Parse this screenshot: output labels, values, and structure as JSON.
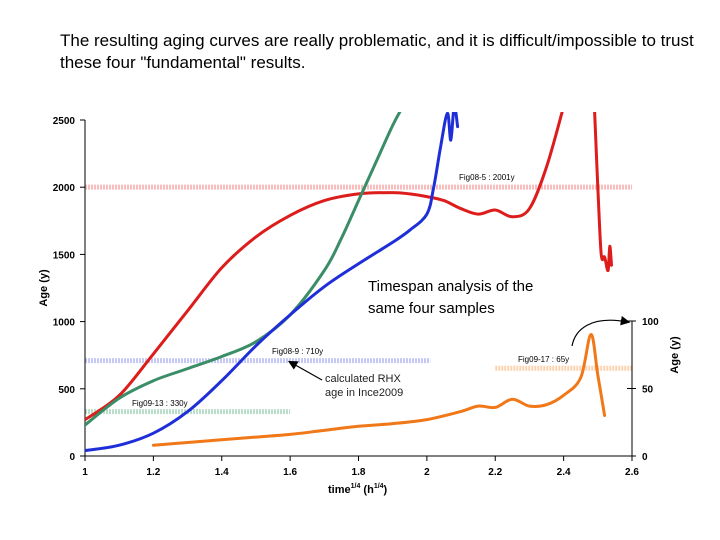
{
  "heading": "The resulting aging curves are really problematic, and it is difficult/impossible to trust  these four \"fundamental\" results.",
  "chart_data": {
    "type": "line",
    "xlabel": "time",
    "xlabel_exponent": "1/4",
    "xlabel_unit_open": " (h",
    "xlabel_unit_exponent": "1/4",
    "xlabel_unit_close": ")",
    "ylabel": "Age (y)",
    "y2label": "Age (y)",
    "xlim": [
      1,
      2.6
    ],
    "ylim": [
      0,
      2500
    ],
    "y2lim": [
      0,
      100
    ],
    "x_ticks": [
      "1",
      "1.2",
      "1.4",
      "1.6",
      "1.8",
      "2",
      "2.2",
      "2.4",
      "2.6"
    ],
    "y_ticks": [
      "0",
      "500",
      "1000",
      "1500",
      "2000",
      "2500"
    ],
    "y2_ticks": [
      "0",
      "50",
      "100"
    ],
    "reference_lines": [
      {
        "label": "Fig08-5 : 2001y",
        "value": 2001,
        "axis": "left",
        "x_range": [
          1,
          2.6
        ],
        "color": "#f06a6a"
      },
      {
        "label": "Fig08-9 : 710y",
        "value": 710,
        "axis": "left",
        "x_range": [
          1,
          2.01
        ],
        "color": "#7f86e8"
      },
      {
        "label": "Fig09-13 : 330y",
        "value": 330,
        "axis": "left",
        "x_range": [
          1,
          1.6
        ],
        "color": "#66b88a"
      },
      {
        "label": "Fig09-17 : 65y",
        "value": 65,
        "axis": "right",
        "x_range": [
          2.2,
          2.6
        ],
        "color": "#f5a050"
      }
    ],
    "series": [
      {
        "name": "red",
        "axis": "left",
        "color": "#dd1c1c",
        "x": [
          1.0,
          1.1,
          1.2,
          1.3,
          1.4,
          1.5,
          1.6,
          1.7,
          1.8,
          1.9,
          1.95,
          2.0,
          2.05,
          2.1,
          2.15,
          2.2,
          2.25,
          2.3,
          2.35,
          2.4
        ],
        "y": [
          270,
          450,
          760,
          1080,
          1400,
          1630,
          1790,
          1900,
          1950,
          1960,
          1950,
          1930,
          1900,
          1840,
          1800,
          1830,
          1780,
          1840,
          2150,
          2600
        ]
      },
      {
        "name": "red-tail",
        "axis": "left",
        "color": "#dd1c1c",
        "x": [
          2.49,
          2.5,
          2.51,
          2.52,
          2.53,
          2.535,
          2.54
        ],
        "y": [
          2600,
          2000,
          1500,
          1480,
          1380,
          1560,
          1420
        ]
      },
      {
        "name": "green",
        "axis": "left",
        "color": "#3a8e67",
        "x": [
          1.0,
          1.1,
          1.2,
          1.3,
          1.4,
          1.5,
          1.6,
          1.7,
          1.75,
          1.8,
          1.85,
          1.9,
          1.93
        ],
        "y": [
          230,
          430,
          560,
          650,
          740,
          850,
          1050,
          1380,
          1620,
          1900,
          2180,
          2460,
          2600
        ]
      },
      {
        "name": "blue",
        "axis": "left",
        "color": "#1f2fd8",
        "x": [
          1.0,
          1.1,
          1.2,
          1.3,
          1.4,
          1.5,
          1.6,
          1.7,
          1.8,
          1.9,
          1.95,
          2.0,
          2.02,
          2.04,
          2.06,
          2.07,
          2.08,
          2.09
        ],
        "y": [
          40,
          80,
          170,
          330,
          560,
          820,
          1050,
          1260,
          1430,
          1590,
          1680,
          1800,
          2000,
          2300,
          2550,
          2350,
          2600,
          2450
        ]
      },
      {
        "name": "orange",
        "axis": "right",
        "color": "#f07818",
        "x": [
          1.2,
          1.3,
          1.4,
          1.5,
          1.6,
          1.7,
          1.8,
          1.9,
          2.0,
          2.1,
          2.15,
          2.2,
          2.25,
          2.3,
          2.35,
          2.4,
          2.45,
          2.48,
          2.5,
          2.52
        ],
        "y": [
          8,
          10,
          12,
          14,
          16,
          19,
          22,
          24,
          27,
          33,
          37,
          36,
          42,
          37,
          38,
          45,
          58,
          90,
          60,
          30
        ]
      }
    ],
    "overlay_text": [
      "Timespan analysis of the",
      "same four samples"
    ],
    "annotation_text": [
      "calculated RHX",
      "age in Ince2009"
    ]
  }
}
